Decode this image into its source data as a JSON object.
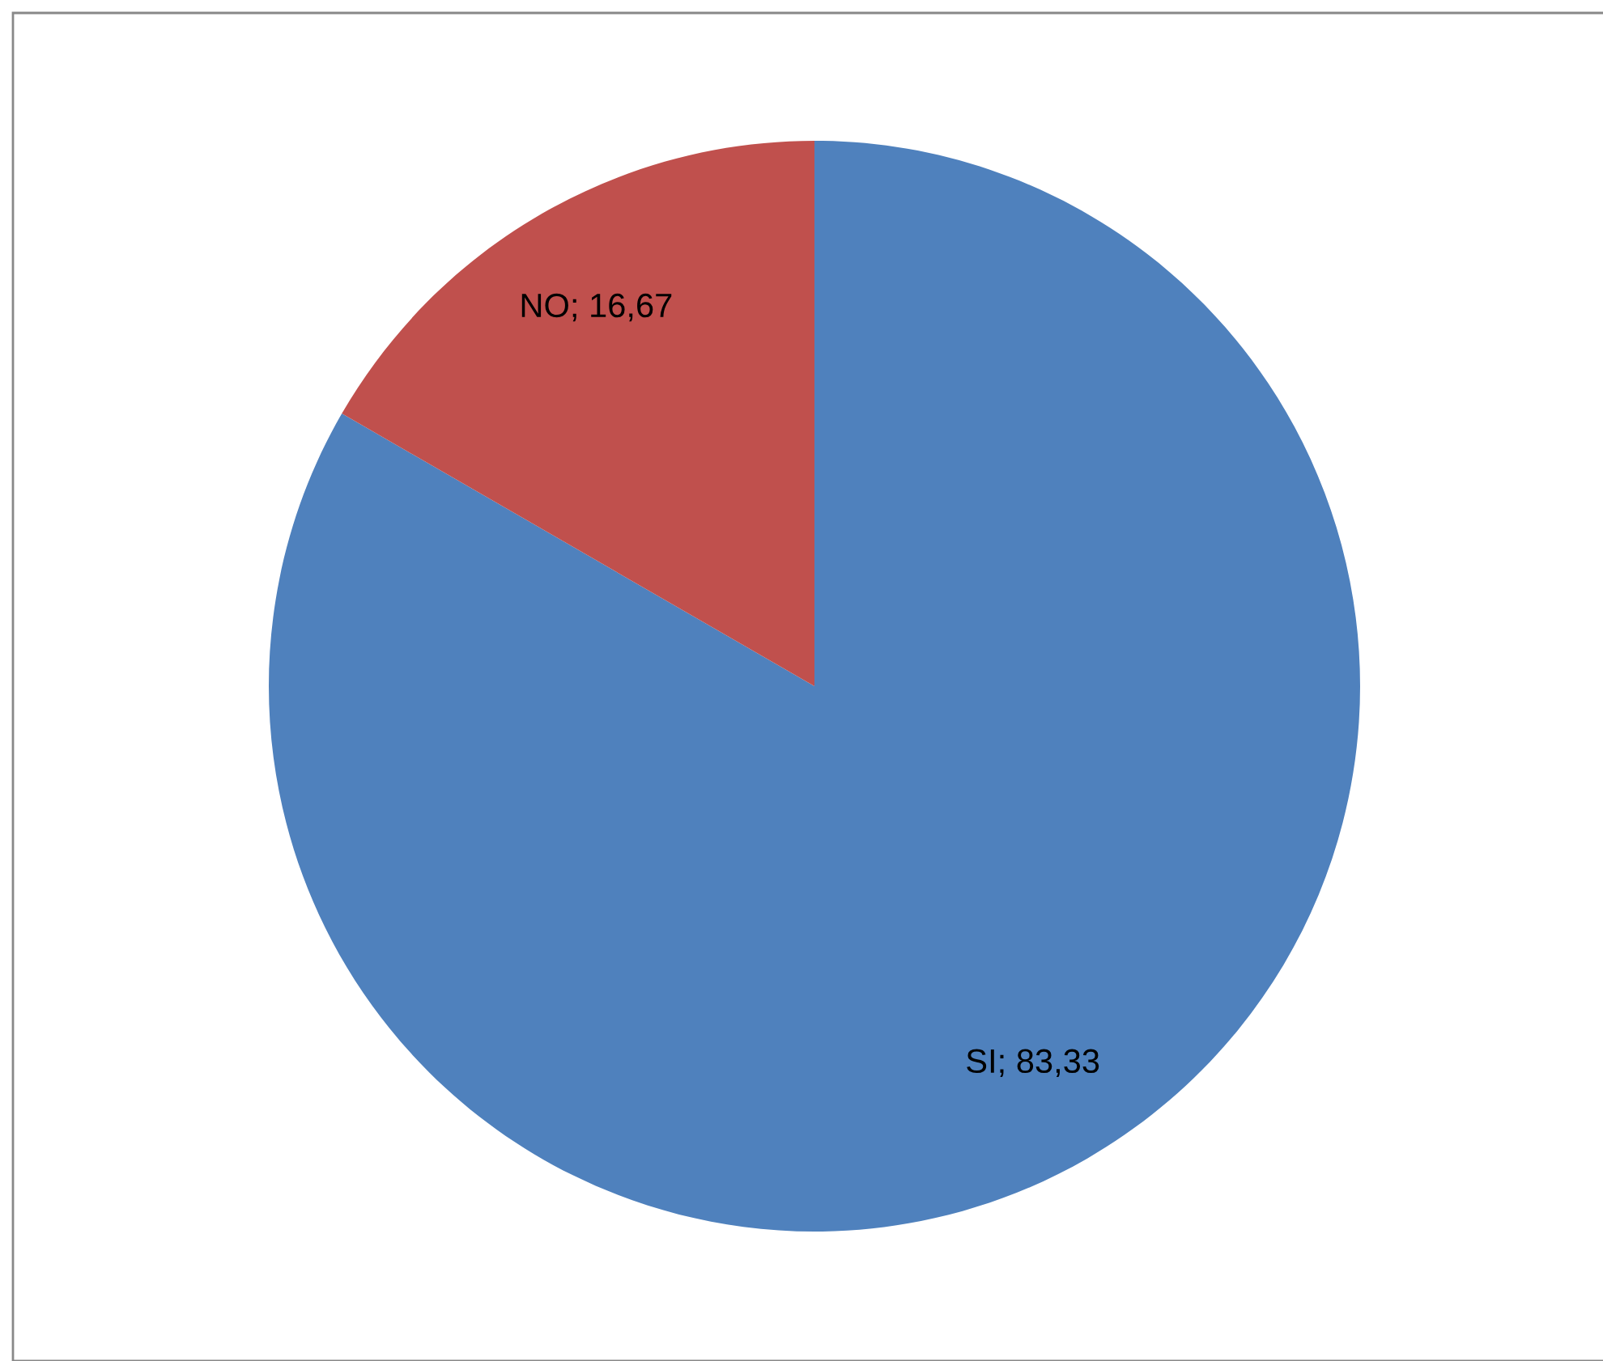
{
  "chart_data": {
    "type": "pie",
    "categories": [
      "SI",
      "NO"
    ],
    "values": [
      83.33,
      16.67
    ],
    "colors": [
      "#4f81bd",
      "#c0504d"
    ],
    "value_labels": [
      "83,33",
      "16,67"
    ]
  }
}
